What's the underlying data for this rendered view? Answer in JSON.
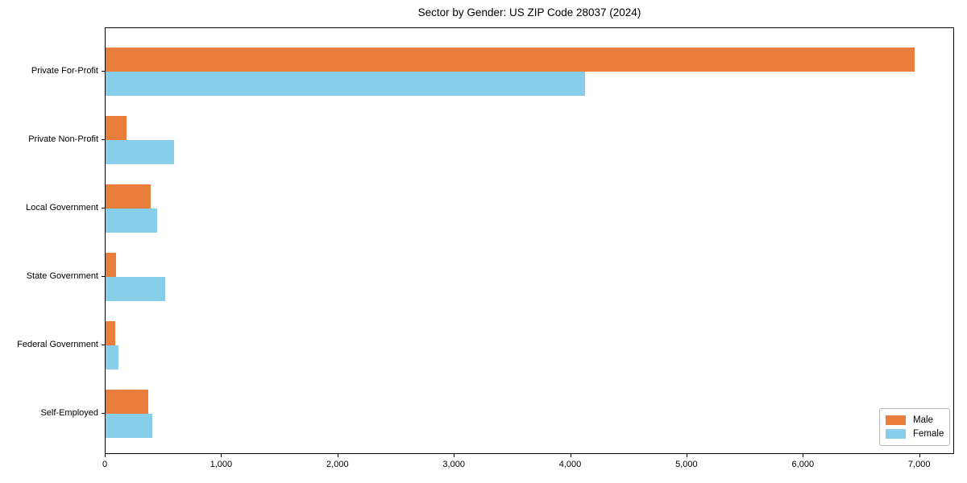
{
  "title": "Sector by Gender: US ZIP Code 28037 (2024)",
  "chart_data": {
    "type": "bar",
    "orientation": "horizontal",
    "title": "Sector by Gender: US ZIP Code 28037 (2024)",
    "categories": [
      "Private For-Profit",
      "Private Non-Profit",
      "Local Government",
      "State Government",
      "Federal Government",
      "Self-Employed"
    ],
    "series": [
      {
        "name": "Male",
        "color": "#e87d3c",
        "values": [
          6950,
          180,
          390,
          90,
          80,
          370
        ]
      },
      {
        "name": "Female",
        "color": "#87ceeb",
        "values": [
          4120,
          590,
          440,
          510,
          110,
          400
        ]
      }
    ],
    "xlim": [
      0,
      7300
    ],
    "xticks": [
      0,
      1000,
      2000,
      3000,
      4000,
      5000,
      6000,
      7000
    ],
    "xtick_labels": [
      "0",
      "1,000",
      "2,000",
      "3,000",
      "4,000",
      "5,000",
      "6,000",
      "7,000"
    ],
    "xlabel": "",
    "ylabel": "",
    "grid": false,
    "legend_position": "lower right"
  }
}
